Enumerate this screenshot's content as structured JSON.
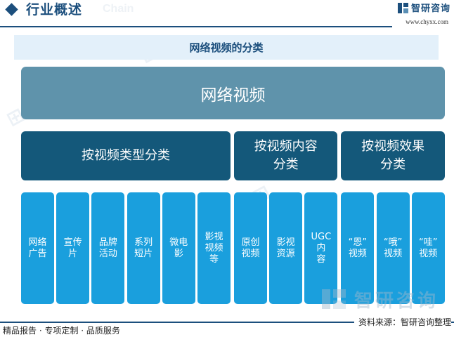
{
  "header": {
    "title": "行业概述",
    "ghost_text": "Chain",
    "logo_text": "智研咨询",
    "url": "www.chyxx.com"
  },
  "diagram": {
    "title": "网络视频的分类",
    "root": "网络视频",
    "categories": [
      {
        "label": "按视频类型分类",
        "children": [
          "网络\n广告",
          "宣传\n片",
          "品牌\n活动",
          "系列\n短片",
          "微电\n影",
          "影视\n视频\n等"
        ]
      },
      {
        "label": "按视频内容\n分类",
        "children": [
          "原创\n视频",
          "影视\n资源",
          "UGC内\n容"
        ]
      },
      {
        "label": "按视频效果\n分类",
        "children": [
          "“恩”\n视频",
          "“哦”\n视频",
          "“哇”\n视频"
        ]
      }
    ]
  },
  "watermark": {
    "text": "智研咨询"
  },
  "footer": {
    "left": "精品报告 · 专项定制 · 品质服务",
    "source": "资料来源：智研咨询整理"
  },
  "colors": {
    "brand": "#1c4f7d",
    "title_bg": "#e3f0fa",
    "root": "#5f93ab",
    "category": "#14587a",
    "leaf": "#1a9fdd"
  }
}
